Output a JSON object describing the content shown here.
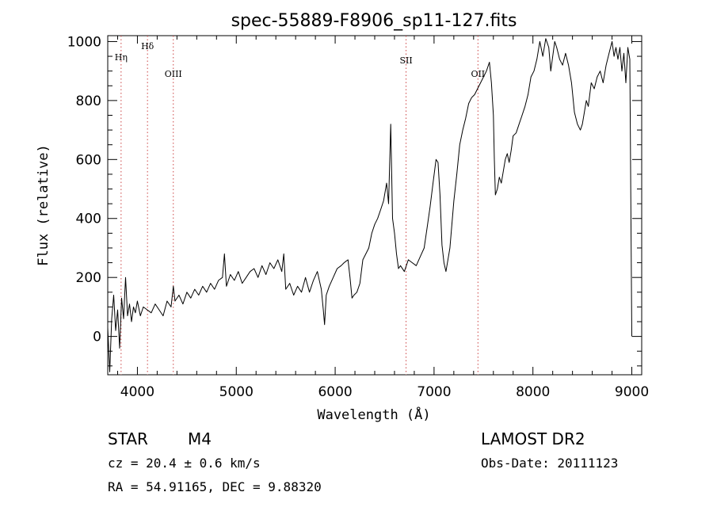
{
  "chart_data": {
    "type": "line",
    "title": "spec-55889-F8906_sp11-127.fits",
    "xlabel": "Wavelength (Å)",
    "ylabel": "Flux (relative)",
    "xlim": [
      3700,
      9100
    ],
    "ylim": [
      -130,
      1020
    ],
    "x_ticks": [
      4000,
      5000,
      6000,
      7000,
      8000,
      9000
    ],
    "y_ticks": [
      0,
      200,
      400,
      600,
      800,
      1000
    ],
    "grid": false,
    "line_color": "#000000",
    "marker_color": "#cc4444",
    "lines": [
      {
        "label": "Hη",
        "x": 3835
      },
      {
        "label": "Hδ",
        "x": 4102
      },
      {
        "label": "OIII",
        "x": 4363
      },
      {
        "label": "SII",
        "x": 6717
      },
      {
        "label": "OII",
        "x": 7444
      }
    ],
    "series": [
      {
        "x": [
          3700,
          3720,
          3740,
          3760,
          3780,
          3800,
          3820,
          3840,
          3860,
          3880,
          3900,
          3920,
          3940,
          3960,
          3980,
          4000,
          4030,
          4060,
          4100,
          4140,
          4180,
          4220,
          4260,
          4300,
          4340,
          4363,
          4380,
          4420,
          4460,
          4500,
          4540,
          4580,
          4620,
          4660,
          4700,
          4740,
          4780,
          4820,
          4860,
          4880,
          4900,
          4940,
          4980,
          5020,
          5060,
          5100,
          5140,
          5180,
          5220,
          5260,
          5300,
          5340,
          5380,
          5420,
          5460,
          5480,
          5500,
          5540,
          5580,
          5620,
          5660,
          5700,
          5740,
          5780,
          5820,
          5860,
          5880,
          5893,
          5910,
          5940,
          5980,
          6020,
          6060,
          6090,
          6110,
          6130,
          6150,
          6170,
          6190,
          6220,
          6250,
          6280,
          6310,
          6340,
          6370,
          6400,
          6430,
          6460,
          6490,
          6520,
          6540,
          6562,
          6580,
          6600,
          6620,
          6640,
          6660,
          6700,
          6740,
          6780,
          6820,
          6860,
          6900,
          6930,
          6960,
          6990,
          7020,
          7040,
          7060,
          7080,
          7100,
          7120,
          7140,
          7160,
          7180,
          7200,
          7230,
          7260,
          7290,
          7320,
          7350,
          7380,
          7410,
          7440,
          7470,
          7500,
          7530,
          7560,
          7580,
          7600,
          7610,
          7620,
          7640,
          7660,
          7680,
          7700,
          7720,
          7740,
          7760,
          7780,
          7800,
          7830,
          7860,
          7890,
          7920,
          7950,
          7980,
          8010,
          8040,
          8070,
          8100,
          8130,
          8160,
          8180,
          8200,
          8220,
          8240,
          8270,
          8300,
          8330,
          8360,
          8390,
          8420,
          8450,
          8480,
          8500,
          8520,
          8540,
          8560,
          8590,
          8620,
          8650,
          8680,
          8710,
          8740,
          8770,
          8800,
          8820,
          8840,
          8860,
          8880,
          8900,
          8920,
          8940,
          8960,
          8980,
          9000
        ],
        "values": [
          30,
          -120,
          60,
          140,
          20,
          90,
          -40,
          130,
          60,
          200,
          70,
          110,
          50,
          100,
          80,
          120,
          70,
          100,
          90,
          80,
          110,
          90,
          70,
          120,
          100,
          170,
          120,
          140,
          110,
          150,
          130,
          160,
          140,
          170,
          150,
          180,
          160,
          190,
          200,
          280,
          170,
          210,
          190,
          220,
          180,
          200,
          220,
          230,
          200,
          240,
          210,
          250,
          230,
          260,
          220,
          280,
          160,
          180,
          140,
          170,
          150,
          200,
          150,
          190,
          220,
          160,
          90,
          40,
          140,
          170,
          200,
          230,
          240,
          250,
          255,
          260,
          200,
          130,
          140,
          150,
          180,
          260,
          280,
          300,
          350,
          380,
          400,
          430,
          460,
          520,
          450,
          720,
          400,
          350,
          280,
          230,
          240,
          220,
          260,
          250,
          240,
          270,
          300,
          370,
          440,
          520,
          600,
          590,
          480,
          310,
          250,
          220,
          260,
          300,
          380,
          460,
          550,
          650,
          700,
          740,
          790,
          810,
          820,
          840,
          860,
          880,
          900,
          930,
          860,
          750,
          600,
          480,
          500,
          540,
          520,
          560,
          600,
          620,
          590,
          630,
          680,
          690,
          720,
          750,
          780,
          820,
          880,
          900,
          940,
          1000,
          950,
          1010,
          980,
          900,
          950,
          1000,
          980,
          940,
          920,
          960,
          920,
          860,
          760,
          720,
          700,
          720,
          760,
          800,
          780,
          860,
          840,
          880,
          900,
          860,
          920,
          960,
          1000,
          950,
          980,
          940,
          980,
          900,
          960,
          860,
          980,
          940,
          0
        ]
      }
    ]
  },
  "footer": {
    "object_class": "STAR",
    "subclass": "M4",
    "survey": "LAMOST DR2",
    "cz_text": "cz = 20.4 ± 0.6 km/s",
    "obs_date": "Obs-Date: 20111123",
    "coords": "RA =  54.91165, DEC =   9.88320"
  }
}
